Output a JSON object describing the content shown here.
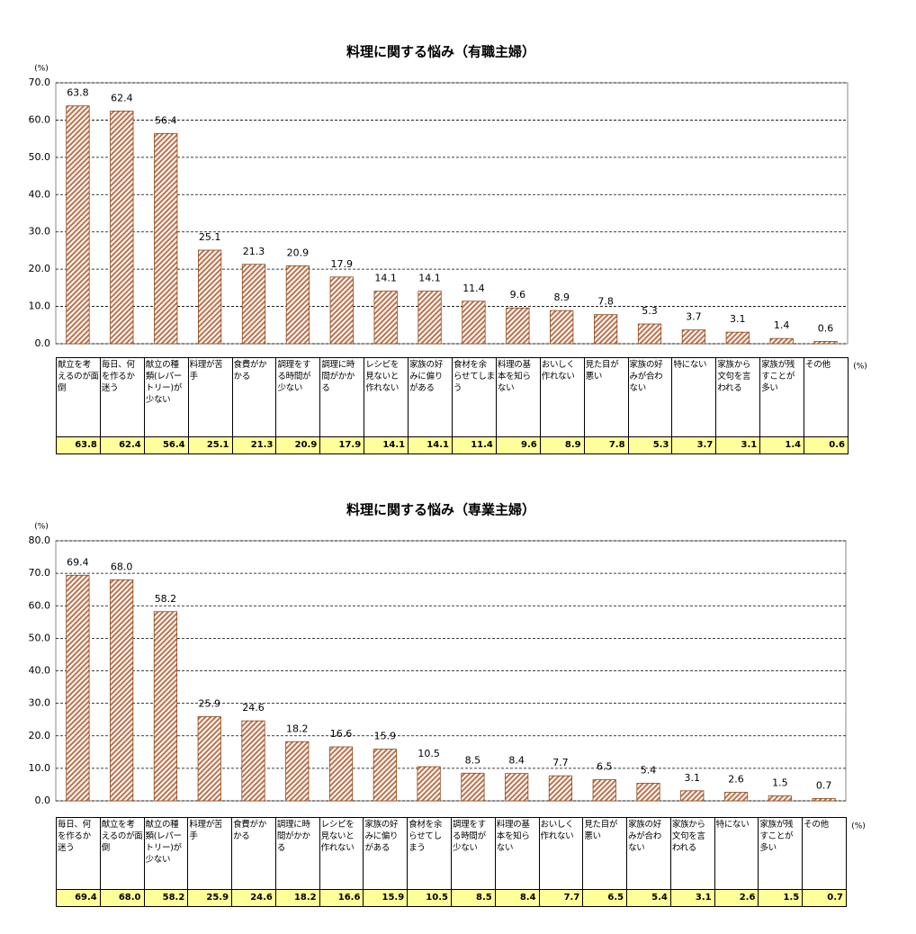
{
  "chart_data": [
    {
      "type": "bar",
      "title": "料理に関する悩み（有職主婦）",
      "y_unit": "(%)",
      "table_unit": "(%)",
      "categories": [
        "献立を考えるのが面倒",
        "毎日、何を作るか迷う",
        "献立の種類(レパートリー)が少ない",
        "料理が苦手",
        "食費がかかる",
        "調理をする時間が少ない",
        "調理に時間がかかる",
        "レシピを見ないと作れない",
        "家族の好みに偏りがある",
        "食材を余らせてしまう",
        "料理の基本を知らない",
        "おいしく作れない",
        "見た目が悪い",
        "家族の好みが合わない",
        "特にない",
        "家族から文句を言われる",
        "家族が残すことが多い",
        "その他"
      ],
      "values": [
        63.8,
        62.4,
        56.4,
        25.1,
        21.3,
        20.9,
        17.9,
        14.1,
        14.1,
        11.4,
        9.6,
        8.9,
        7.8,
        5.3,
        3.7,
        3.1,
        1.4,
        0.6
      ],
      "color": "#b8623c",
      "ylim": [
        0,
        70
      ],
      "yticks": [
        {
          "value": 0,
          "label": "0.0"
        },
        {
          "value": 10,
          "label": "10.0"
        },
        {
          "value": 20,
          "label": "20.0"
        },
        {
          "value": 30,
          "label": "30.0"
        },
        {
          "value": 40,
          "label": "40.0"
        },
        {
          "value": 50,
          "label": "50.0"
        },
        {
          "value": 60,
          "label": "60.0"
        },
        {
          "value": 70,
          "label": "70.0"
        }
      ],
      "grid": true
    },
    {
      "type": "bar",
      "title": "料理に関する悩み（専業主婦）",
      "y_unit": "(%)",
      "table_unit": "(%)",
      "categories": [
        "毎日、何を作るか迷う",
        "献立を考えるのが面倒",
        "献立の種類(レパートリー)が少ない",
        "料理が苦手",
        "食費がかかる",
        "調理に時間がかかる",
        "レシピを見ないと作れない",
        "家族の好みに偏りがある",
        "食材を余らせてしまう",
        "調理をする時間が少ない",
        "料理の基本を知らない",
        "おいしく作れない",
        "見た目が悪い",
        "家族の好みが合わない",
        "家族から文句を言われる",
        "特にない",
        "家族が残すことが多い",
        "その他"
      ],
      "values": [
        69.4,
        68,
        58.2,
        25.9,
        24.6,
        18.2,
        16.6,
        15.9,
        10.5,
        8.5,
        8.4,
        7.7,
        6.5,
        5.4,
        3.1,
        2.6,
        1.5,
        0.7
      ],
      "value_labels": [
        "69.4",
        "68.0",
        "58.2",
        "25.9",
        "24.6",
        "18.2",
        "16.6",
        "15.9",
        "10.5",
        "8.5",
        "8.4",
        "7.7",
        "6.5",
        "5.4",
        "3.1",
        "2.6",
        "1.5",
        "0.7"
      ],
      "color": "#b8623c",
      "ylim": [
        0,
        80
      ],
      "yticks": [
        {
          "value": 0,
          "label": "0.0"
        },
        {
          "value": 10,
          "label": "10.0"
        },
        {
          "value": 20,
          "label": "20.0"
        },
        {
          "value": 30,
          "label": "30.0"
        },
        {
          "value": 40,
          "label": "40.0"
        },
        {
          "value": 50,
          "label": "50.0"
        },
        {
          "value": 60,
          "label": "60.0"
        },
        {
          "value": 70,
          "label": "70.0"
        },
        {
          "value": 80,
          "label": "80.0"
        }
      ],
      "grid": true
    }
  ]
}
